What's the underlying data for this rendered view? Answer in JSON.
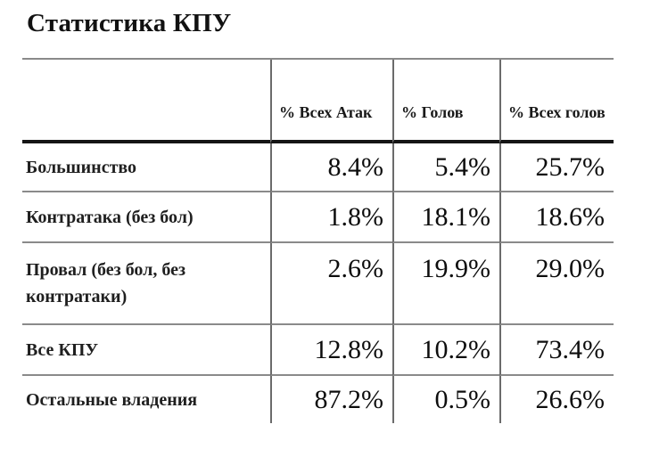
{
  "title": "Статистика КПУ",
  "colors": {
    "grid_line": "#8a8a8a",
    "header_rule": "#151515",
    "column_rule": "#6b6b6b",
    "text": "#111111",
    "background": "#ffffff"
  },
  "chart_data": {
    "type": "table",
    "title": "Статистика КПУ",
    "columns": [
      "",
      "% Всех Атак",
      "% Голов",
      "% Всех голов"
    ],
    "rows": [
      {
        "label": "Большинство",
        "values": [
          "8.4%",
          "5.4%",
          "25.7%"
        ]
      },
      {
        "label": "Контратака (без бол)",
        "values": [
          "1.8%",
          "18.1%",
          "18.6%"
        ]
      },
      {
        "label": "Провал (без бол, без контратаки)",
        "values": [
          "2.6%",
          "19.9%",
          "29.0%"
        ]
      },
      {
        "label": "Все КПУ",
        "values": [
          "12.8%",
          "10.2%",
          "73.4%"
        ]
      },
      {
        "label": "Остальные владения",
        "values": [
          "87.2%",
          "0.5%",
          "26.6%"
        ]
      }
    ],
    "layout": {
      "grid": "horizontal and vertical rules, no outer left/right/bottom border",
      "value_alignment": "right",
      "header_alignment": "bottom-left"
    }
  }
}
